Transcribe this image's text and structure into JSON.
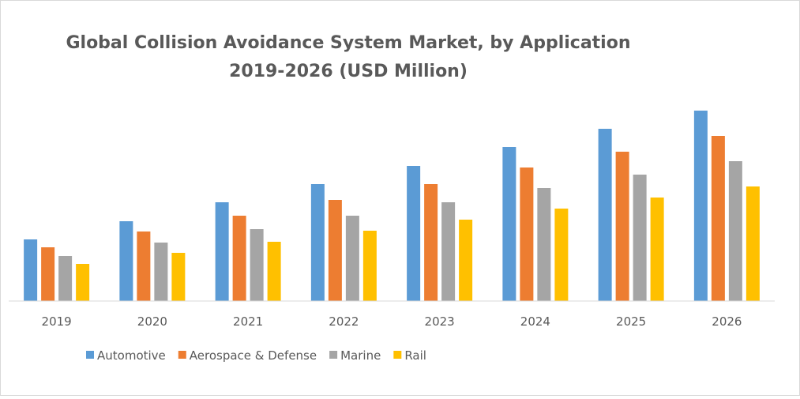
{
  "chart_data": {
    "type": "bar",
    "title": "Global Collision Avoidance System Market, by Application",
    "subtitle": "2019-2026 (USD Million)",
    "xlabel": "",
    "ylabel": "",
    "categories": [
      "2019",
      "2020",
      "2021",
      "2022",
      "2023",
      "2024",
      "2025",
      "2026"
    ],
    "series": [
      {
        "name": "Automotive",
        "color": "#5b9bd5",
        "values": [
          78,
          101,
          125,
          148,
          171,
          195,
          218,
          241
        ]
      },
      {
        "name": "Aerospace & Defense",
        "color": "#ed7d31",
        "values": [
          68,
          88,
          108,
          128,
          148,
          169,
          189,
          209
        ]
      },
      {
        "name": "Marine",
        "color": "#a5a5a5",
        "values": [
          57,
          74,
          91,
          108,
          125,
          143,
          160,
          177
        ]
      },
      {
        "name": "Rail",
        "color": "#ffc000",
        "values": [
          47,
          61,
          75,
          89,
          103,
          117,
          131,
          145
        ]
      }
    ],
    "ylim": [
      0,
      250
    ],
    "y_axis_visible": false,
    "grid": false,
    "legend_position": "bottom-left"
  }
}
